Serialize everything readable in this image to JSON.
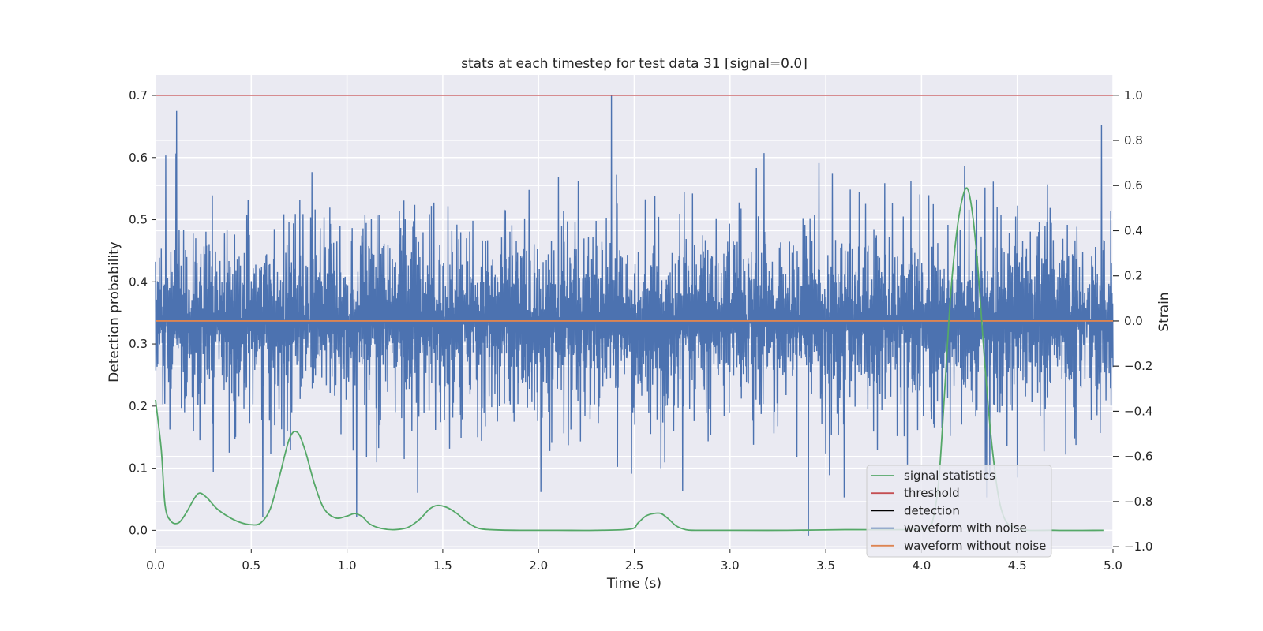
{
  "chart_data": {
    "type": "line",
    "title": "stats at each timestep for test data 31 [signal=0.0]",
    "xlabel": "Time (s)",
    "ylabel": "Detection probability",
    "y2label": "Strain",
    "xlim": [
      0.0,
      5.0
    ],
    "ylim": [
      -0.03,
      0.733
    ],
    "y2lim": [
      -1.01,
      1.09
    ],
    "xticks": [
      0.0,
      0.5,
      1.0,
      1.5,
      2.0,
      2.5,
      3.0,
      3.5,
      4.0,
      4.5,
      5.0
    ],
    "xtick_labels": [
      "0.0",
      "0.5",
      "1.0",
      "1.5",
      "2.0",
      "2.5",
      "3.0",
      "3.5",
      "4.0",
      "4.5",
      "5.0"
    ],
    "yticks": [
      0.0,
      0.1,
      0.2,
      0.3,
      0.4,
      0.5,
      0.6,
      0.7
    ],
    "ytick_labels": [
      "0.0",
      "0.1",
      "0.2",
      "0.3",
      "0.4",
      "0.5",
      "0.6",
      "0.7"
    ],
    "y2ticks": [
      -1.0,
      -0.8,
      -0.6,
      -0.4,
      -0.2,
      0.0,
      0.2,
      0.4,
      0.6,
      0.8,
      1.0
    ],
    "y2tick_labels": [
      "−1.0",
      "−0.8",
      "−0.6",
      "−0.4",
      "−0.2",
      "0.0",
      "0.2",
      "0.4",
      "0.6",
      "0.8",
      "1.0"
    ],
    "grid": true,
    "legend_position": "lower-right",
    "threshold": 0.7,
    "series": [
      {
        "name": "signal statistics",
        "axis": "left",
        "color": "#55a868",
        "x": [
          0.0,
          0.03,
          0.05,
          0.08,
          0.12,
          0.16,
          0.2,
          0.23,
          0.27,
          0.32,
          0.38,
          0.44,
          0.5,
          0.55,
          0.6,
          0.65,
          0.7,
          0.74,
          0.78,
          0.83,
          0.88,
          0.94,
          1.0,
          1.04,
          1.08,
          1.12,
          1.18,
          1.25,
          1.32,
          1.38,
          1.43,
          1.47,
          1.52,
          1.57,
          1.62,
          1.68,
          1.75,
          1.9,
          2.1,
          2.3,
          2.48,
          2.52,
          2.56,
          2.6,
          2.64,
          2.68,
          2.72,
          2.77,
          2.82,
          3.0,
          3.3,
          3.6,
          3.9,
          4.03,
          4.06,
          4.09,
          4.12,
          4.15,
          4.18,
          4.21,
          4.24,
          4.27,
          4.3,
          4.33,
          4.37,
          4.42,
          4.5,
          4.7,
          4.95
        ],
        "values": [
          0.21,
          0.13,
          0.04,
          0.015,
          0.012,
          0.028,
          0.05,
          0.06,
          0.052,
          0.035,
          0.022,
          0.013,
          0.009,
          0.012,
          0.035,
          0.09,
          0.148,
          0.158,
          0.13,
          0.075,
          0.035,
          0.02,
          0.023,
          0.027,
          0.022,
          0.01,
          0.003,
          0.001,
          0.005,
          0.018,
          0.034,
          0.04,
          0.037,
          0.028,
          0.015,
          0.004,
          0.001,
          0.0,
          0.0,
          0.0,
          0.002,
          0.012,
          0.023,
          0.027,
          0.027,
          0.018,
          0.007,
          0.001,
          0.0,
          0.0,
          0.0,
          0.001,
          0.001,
          0.003,
          0.018,
          0.08,
          0.22,
          0.37,
          0.47,
          0.53,
          0.55,
          0.5,
          0.4,
          0.27,
          0.13,
          0.03,
          0.003,
          0.0,
          0.0
        ]
      },
      {
        "name": "threshold",
        "axis": "left",
        "color": "#c44e52",
        "x": [
          0.0,
          5.0
        ],
        "values": [
          0.7,
          0.7
        ]
      },
      {
        "name": "detection",
        "axis": "left",
        "color": "#000000",
        "x": [],
        "values": []
      },
      {
        "name": "waveform with noise",
        "axis": "right",
        "color": "#4c72b0",
        "x_range": [
          0.0,
          5.0
        ],
        "amplitude_range": [
          -0.95,
          1.0
        ],
        "notable_peaks": [
          {
            "x": 0.11,
            "value": 0.93
          },
          {
            "x": 2.38,
            "value": 1.0
          },
          {
            "x": 4.94,
            "value": 0.87
          },
          {
            "x": 3.41,
            "value": -0.95
          },
          {
            "x": 1.05,
            "value": -0.87
          },
          {
            "x": 0.56,
            "value": -0.87
          }
        ]
      },
      {
        "name": "waveform without noise",
        "axis": "right",
        "color": "#dd8452",
        "x": [
          0.0,
          5.0
        ],
        "values": [
          0.0,
          0.0
        ]
      }
    ]
  }
}
